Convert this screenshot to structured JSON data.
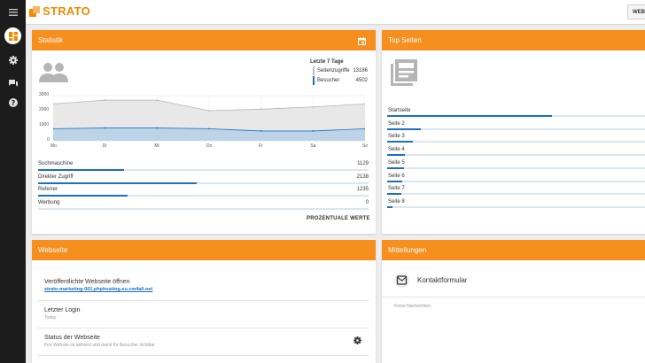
{
  "brand": {
    "name": "STRATO",
    "color": "#f08a00"
  },
  "topbar": {
    "website_button": "WEBSITE"
  },
  "sidebar": {
    "icons": [
      "menu-icon",
      "dashboard-icon",
      "settings-icon",
      "messages-icon",
      "help-icon"
    ]
  },
  "statistik": {
    "title": "Statistik",
    "period": "Letzte 7 Tage",
    "legend": [
      {
        "label": "Seitenzugriffe",
        "value": "13186",
        "color": "#bdbdbd"
      },
      {
        "label": "Besucher",
        "value": "4502",
        "color": "#1b6fc0"
      }
    ],
    "metrics": [
      {
        "label": "Suchmaschine",
        "value": "1129",
        "fraction": 0.26
      },
      {
        "label": "Direkter Zugriff",
        "value": "2138",
        "fraction": 0.48
      },
      {
        "label": "Referrer",
        "value": "1235",
        "fraction": 0.27
      },
      {
        "label": "Werbung",
        "value": "0",
        "fraction": 0
      }
    ],
    "percent_button": "PROZENTUALE WERTE"
  },
  "chart_data": {
    "type": "area",
    "categories": [
      "Mo",
      "Di",
      "Mi",
      "Do",
      "Fr",
      "Sa",
      "So"
    ],
    "series": [
      {
        "name": "Seitenzugriffe",
        "values": [
          2450,
          2700,
          2700,
          2000,
          2100,
          2250,
          2450
        ]
      },
      {
        "name": "Besucher",
        "values": [
          800,
          850,
          850,
          800,
          650,
          650,
          800
        ]
      }
    ],
    "yticks": [
      "3000",
      "2000",
      "1000",
      "0"
    ],
    "ylim": [
      0,
      3000
    ],
    "grid": true
  },
  "top_seiten": {
    "title": "Top Seiten",
    "pages": [
      {
        "label": "Startseite",
        "fraction": 0.64
      },
      {
        "label": "Seite 2",
        "fraction": 0.13
      },
      {
        "label": "Seite 3",
        "fraction": 0.1
      },
      {
        "label": "Seite 4",
        "fraction": 0.07
      },
      {
        "label": "Seite 5",
        "fraction": 0.065
      },
      {
        "label": "Seite 6",
        "fraction": 0.06
      },
      {
        "label": "Seite 7",
        "fraction": 0.055
      },
      {
        "label": "Seite 8",
        "fraction": 0.02
      }
    ]
  },
  "webseite": {
    "title": "Webseite",
    "open_label": "Veröffentlichte Webseite öffnen",
    "url": "strato-marketing-001.phphosting.eu.cm4all.net",
    "login_label": "Letzter Login",
    "login_value": "Today",
    "status_label": "Status der Webseite",
    "status_value": "Ihre Website ist aktiviert und damit für Besucher sichtbar"
  },
  "mitteilungen": {
    "title": "Mitteilungen",
    "contact_label": "Kontaktformular",
    "empty_text": "Keine Nachrichten."
  }
}
